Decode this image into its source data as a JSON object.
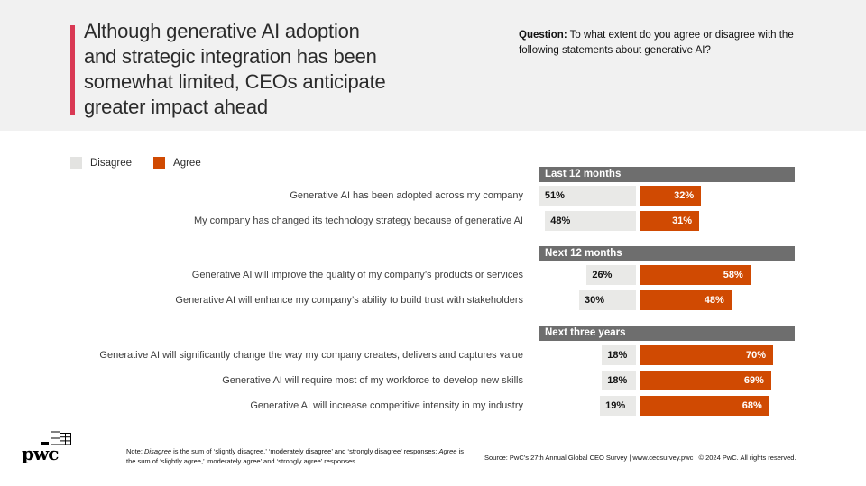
{
  "title_lines": [
    "Although generative AI adoption",
    "and strategic integration has been",
    "somewhat limited, CEOs anticipate",
    "greater impact ahead"
  ],
  "question": {
    "prefix": "Question:",
    "line1": "To what extent do you agree or disagree with the",
    "line2": "following statements about generative AI?"
  },
  "legend": {
    "disagree": "Disagree",
    "agree": "Agree"
  },
  "colors": {
    "agree_orange": "#d04a02",
    "disagree_gray": "#e9e9e7",
    "section_header_gray": "#6e6e6e",
    "accent_rose": "#d93954",
    "top_band_gray": "#f1f1f1"
  },
  "sections": [
    {
      "title": "Last 12 months"
    },
    {
      "title": "Next 12 months"
    },
    {
      "title": "Next three years"
    }
  ],
  "rows": [
    {
      "label": "Generative AI has been adopted across my company",
      "disagree": 51,
      "agree": 32,
      "disagree_label": "51%",
      "agree_label": "32%"
    },
    {
      "label": "My company has changed its technology strategy because of generative AI",
      "disagree": 48,
      "agree": 31,
      "disagree_label": "48%",
      "agree_label": "31%"
    },
    {
      "label": "Generative AI will improve the quality of my company’s products or services",
      "disagree": 26,
      "agree": 58,
      "disagree_label": "26%",
      "agree_label": "58%"
    },
    {
      "label": "Generative AI will enhance my company’s ability to build trust with stakeholders",
      "disagree": 30,
      "agree": 48,
      "disagree_label": "30%",
      "agree_label": "48%"
    },
    {
      "label": "Generative AI will significantly change the way my company creates, delivers and captures value",
      "disagree": 18,
      "agree": 70,
      "disagree_label": "18%",
      "agree_label": "70%"
    },
    {
      "label": "Generative AI will require most of my workforce to develop new skills",
      "disagree": 18,
      "agree": 69,
      "disagree_label": "18%",
      "agree_label": "69%"
    },
    {
      "label": "Generative AI will increase competitive intensity in my industry",
      "disagree": 19,
      "agree": 68,
      "disagree_label": "19%",
      "agree_label": "68%"
    }
  ],
  "footer": {
    "logo_text": "pwc",
    "note": {
      "p1": "Note: ",
      "i1": "Disagree",
      "p2": " is the sum of ‘slightly disagree,’ ‘moderately disagree’ and ‘strongly disagree’ responses; ",
      "i2": "Agree",
      "p3": " is the sum of ‘slightly agree,’ ‘moderately agree’ and ‘strongly agree’ responses."
    },
    "source": "Source: PwC’s 27th Annual Global CEO Survey  |  www.ceosurvey.pwc  |  © 2024 PwC. All rights reserved."
  },
  "chart_data": {
    "type": "bar",
    "orientation": "horizontal-diverging",
    "unit": "%",
    "title": "Although generative AI adoption and strategic integration has been somewhat limited, CEOs anticipate greater impact ahead",
    "legend_entries": [
      "Disagree",
      "Agree"
    ],
    "legend_position": "top-left",
    "categories": [
      "Generative AI has been adopted across my company",
      "My company has changed its technology strategy because of generative AI",
      "Generative AI will improve the quality of my company’s products or services",
      "Generative AI will enhance my company’s ability to build trust with stakeholders",
      "Generative AI will significantly change the way my company creates, delivers and captures value",
      "Generative AI will require most of my workforce to develop new skills",
      "Generative AI will increase competitive intensity in my industry"
    ],
    "series": [
      {
        "name": "Disagree",
        "color": "#e9e9e7",
        "values": [
          51,
          48,
          26,
          30,
          18,
          18,
          19
        ]
      },
      {
        "name": "Agree",
        "color": "#d04a02",
        "values": [
          32,
          31,
          58,
          48,
          70,
          69,
          68
        ]
      }
    ],
    "groups": [
      {
        "name": "Last 12 months",
        "category_indexes": [
          0,
          1
        ]
      },
      {
        "name": "Next 12 months",
        "category_indexes": [
          2,
          3
        ]
      },
      {
        "name": "Next three years",
        "category_indexes": [
          4,
          5,
          6
        ]
      }
    ]
  }
}
